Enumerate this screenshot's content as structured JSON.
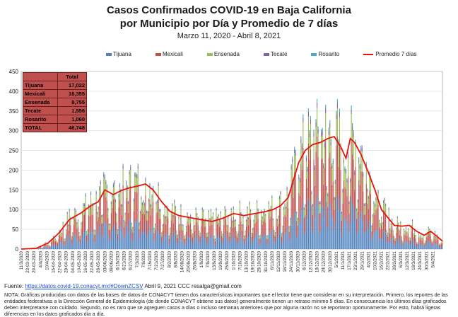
{
  "header": {
    "title_line1": "Casos Confirmados COVID-19 en Baja California",
    "title_line2": "por Municipio por Día y Promedio de 7 días",
    "subtitle": "Marzo 11, 2020  - Abril 8, 2021"
  },
  "legend": [
    "Tijuana",
    "Mexicali",
    "Ensenada",
    "Tecate",
    "Rosarito",
    "Promedio 7 días"
  ],
  "colors": {
    "Tijuana": "#4f81bd",
    "Mexicali": "#c0504d",
    "Ensenada": "#9bbb59",
    "Tecate": "#8064a2",
    "Rosarito": "#4bacc6",
    "Promedio 7 días": "#e8120c"
  },
  "totals_table": {
    "header": "Total",
    "rows": [
      {
        "name": "Tijuana",
        "value": "17,022"
      },
      {
        "name": "Mexicali",
        "value": "18,355"
      },
      {
        "name": "Ensenada",
        "value": "8,755"
      },
      {
        "name": "Tecate",
        "value": "1,556"
      },
      {
        "name": "Rosarito",
        "value": "1,060"
      },
      {
        "name": "TOTAL",
        "value": "46,748"
      }
    ]
  },
  "chart_data": {
    "type": "bar",
    "stacked": true,
    "ylim": [
      0,
      450
    ],
    "yticks": [
      0,
      50,
      100,
      150,
      200,
      250,
      300,
      350,
      400,
      450
    ],
    "grid": true,
    "legend_position": "top",
    "x_tick_labels": [
      "11/3/2020",
      "23-03-2020",
      "29-03-2020",
      "4/4/2020",
      "10/4/2020",
      "16-04-2020",
      "22-04-2020",
      "28-04-2020",
      "04-05-2020",
      "10-05-2020",
      "16-05-2020",
      "22-05-2020",
      "28-05-2020",
      "03/06/2020",
      "09/06/2020",
      "6/15/2020",
      "6/21/2020",
      "6/27/2020",
      "7/3/2020",
      "7/9/2020",
      "7/15/2020",
      "7/21/2020",
      "7/27/2020",
      "8/2/2020",
      "8/8/2020",
      "14/08/2020",
      "20/08/2020",
      "26/8/2020",
      "1/9/2020",
      "7/9/2020",
      "13/9/2020",
      "19/9/2020",
      "25/9/2020",
      "1/10/2020",
      "7/10/2020",
      "13/10/2020",
      "19/10/2020",
      "25/10/2020",
      "31/10/2020",
      "6/11/2020",
      "12/11/2020",
      "18/11/2020",
      "24/11/2020",
      "30/11/2020",
      "6/12/2020",
      "12/12/2020",
      "18/12/2020",
      "24/12/2020",
      "30/12/2020",
      "5/1/2021",
      "11/1/2021",
      "17/1/2021",
      "23/1/2021",
      "29/1/2021",
      "4/2/2021",
      "10/2/2021",
      "16/2/2021",
      "22/2/2021",
      "28/2/2021",
      "6/3/2021",
      "12/3/2021",
      "18/3/2021",
      "24/3/2021",
      "30/3/2021",
      "5/4/2021"
    ],
    "x_start": "2020-03-11",
    "x_end": "2021-04-08",
    "seven_day_average_points": [
      [
        "2020-03-11",
        0
      ],
      [
        "2020-03-25",
        2
      ],
      [
        "2020-04-05",
        15
      ],
      [
        "2020-04-15",
        40
      ],
      [
        "2020-04-25",
        75
      ],
      [
        "2020-05-05",
        90
      ],
      [
        "2020-05-15",
        110
      ],
      [
        "2020-05-22",
        120
      ],
      [
        "2020-05-28",
        150
      ],
      [
        "2020-06-05",
        138
      ],
      [
        "2020-06-12",
        148
      ],
      [
        "2020-06-20",
        155
      ],
      [
        "2020-06-28",
        160
      ],
      [
        "2020-07-05",
        165
      ],
      [
        "2020-07-12",
        150
      ],
      [
        "2020-07-20",
        120
      ],
      [
        "2020-07-28",
        95
      ],
      [
        "2020-08-05",
        85
      ],
      [
        "2020-08-15",
        80
      ],
      [
        "2020-08-25",
        75
      ],
      [
        "2020-09-05",
        70
      ],
      [
        "2020-09-15",
        78
      ],
      [
        "2020-09-25",
        90
      ],
      [
        "2020-10-05",
        85
      ],
      [
        "2020-10-15",
        90
      ],
      [
        "2020-10-25",
        95
      ],
      [
        "2020-11-01",
        100
      ],
      [
        "2020-11-08",
        110
      ],
      [
        "2020-11-15",
        130
      ],
      [
        "2020-11-20",
        175
      ],
      [
        "2020-11-25",
        220
      ],
      [
        "2020-12-01",
        250
      ],
      [
        "2020-12-08",
        265
      ],
      [
        "2020-12-15",
        270
      ],
      [
        "2020-12-22",
        280
      ],
      [
        "2020-12-28",
        285
      ],
      [
        "2021-01-03",
        260
      ],
      [
        "2021-01-08",
        230
      ],
      [
        "2021-01-12",
        280
      ],
      [
        "2021-01-16",
        270
      ],
      [
        "2021-01-22",
        240
      ],
      [
        "2021-01-28",
        200
      ],
      [
        "2021-02-04",
        150
      ],
      [
        "2021-02-10",
        100
      ],
      [
        "2021-02-16",
        80
      ],
      [
        "2021-02-22",
        60
      ],
      [
        "2021-03-01",
        58
      ],
      [
        "2021-03-08",
        60
      ],
      [
        "2021-03-15",
        45
      ],
      [
        "2021-03-22",
        35
      ],
      [
        "2021-03-28",
        45
      ],
      [
        "2021-04-03",
        32
      ],
      [
        "2021-04-08",
        20
      ]
    ]
  },
  "footer": {
    "source_prefix": "Fuente: ",
    "source_link": "https://datos.covid-19.conacyt.mx/#DownZCSV",
    "source_suffix": "  Abril 9, 2021          CCC    resalga@gmail.com",
    "note": "NOTA: Gráficas producidas con datos de las bases de datos de CONACYT tienen dos características importantes que el lector tiene que considerar en su interpretación. Primero, los reportes de las entidades federativas a la Dirección General de Epidemiología (de donde CONACYT obtiene sus datos) generalmente tienen un retraso mínimo 5 días. En consecuencia los últimos días graficados deben interpretarse con cuidado. Segundo, no es raro que se agreguen casos a días o incluso semanas anteriores que por alguna razón no se reportaron oportunamente. Por esto, habrá ligeras diferencias en los datos graficados día a día."
  }
}
